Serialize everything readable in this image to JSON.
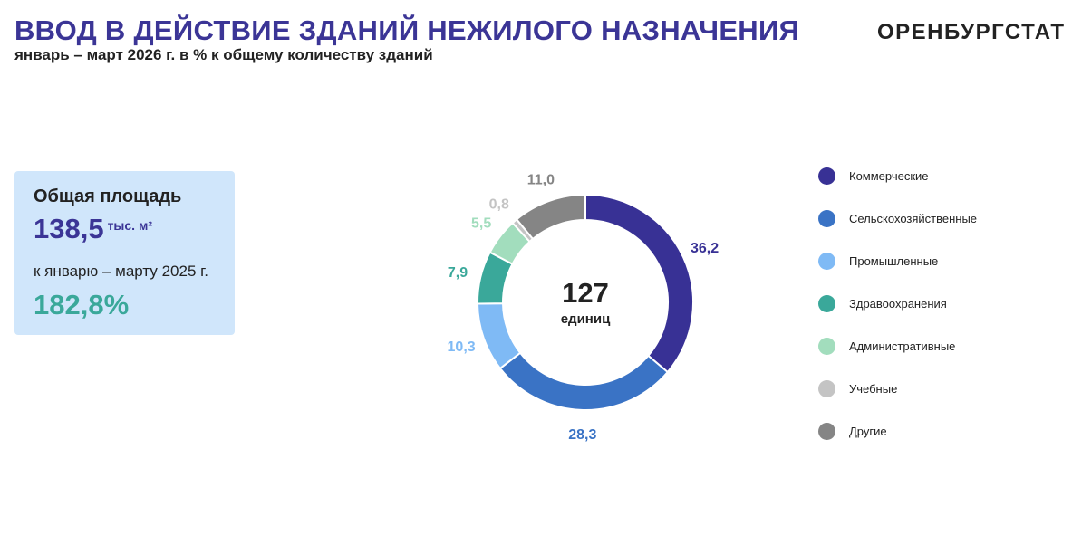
{
  "header": {
    "title": "ВВОД В ДЕЙСТВИЕ ЗДАНИЙ НЕЖИЛОГО НАЗНАЧЕНИЯ",
    "subtitle": "январь – март 2026 г. в % к общему количеству зданий",
    "brand": "ОРЕНБУРГСТАТ"
  },
  "info": {
    "area_label": "Общая площадь",
    "area_value": "138,5",
    "area_unit": "тыс. м²",
    "compare_label": "к январю – марту 2025 г.",
    "compare_value": "182,8%"
  },
  "chart_data": {
    "type": "pie",
    "style": "donut",
    "center_value": "127",
    "center_label": "единиц",
    "categories": [
      "Коммерческие",
      "Сельскохозяйственные",
      "Промышленные",
      "Здравоохранения",
      "Административные",
      "Учебные",
      "Другие"
    ],
    "values": [
      36.2,
      28.3,
      10.3,
      7.9,
      5.5,
      0.8,
      11.0
    ],
    "value_labels": [
      "36,2",
      "28,3",
      "10,3",
      "7,9",
      "5,5",
      "0,8",
      "11,0"
    ],
    "colors": [
      "#383195",
      "#3a73c5",
      "#7fbaf5",
      "#3aa89a",
      "#a2ddbd",
      "#c4c4c4",
      "#858585"
    ],
    "label_colors": [
      "#383195",
      "#3a73c5",
      "#7fbaf5",
      "#3aa89a",
      "#a2ddbd",
      "#c4c4c4",
      "#858585"
    ],
    "legend_placement": "right"
  }
}
